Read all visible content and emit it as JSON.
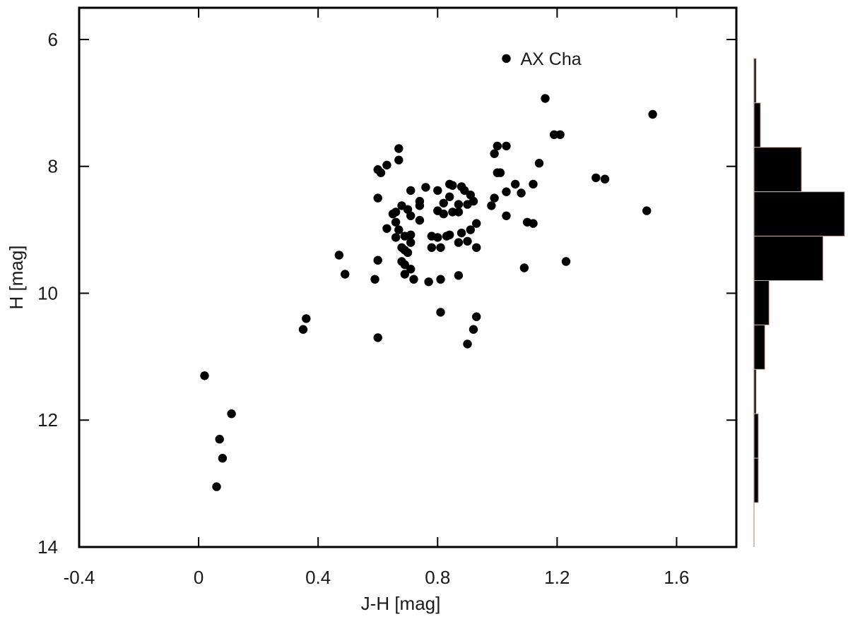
{
  "chart_data": {
    "type": "scatter",
    "xlabel": "J-H [mag]",
    "ylabel": "H [mag]",
    "xlim": [
      -0.4,
      1.8
    ],
    "ylim": [
      14,
      5.5
    ],
    "y_inverted": true,
    "x_ticks": [
      -0.4,
      0,
      0.4,
      0.8,
      1.2,
      1.6
    ],
    "x_tick_labels": [
      "-0.4",
      "0",
      "0.4",
      "0.8",
      "1.2",
      "1.6"
    ],
    "y_ticks": [
      6,
      8,
      10,
      12,
      14
    ],
    "y_tick_labels": [
      "6",
      "8",
      "10",
      "12",
      "14"
    ],
    "grid": false,
    "marker_color": "#000000",
    "annotation": {
      "text": "AX Cha",
      "x": 1.03,
      "y": 6.3
    },
    "points": [
      [
        1.03,
        6.3
      ],
      [
        1.16,
        6.93
      ],
      [
        1.52,
        7.18
      ],
      [
        1.19,
        7.5
      ],
      [
        1.21,
        7.5
      ],
      [
        1.0,
        7.68
      ],
      [
        1.03,
        7.68
      ],
      [
        0.99,
        7.8
      ],
      [
        0.67,
        7.72
      ],
      [
        0.67,
        7.9
      ],
      [
        0.63,
        7.98
      ],
      [
        0.6,
        8.05
      ],
      [
        0.61,
        8.1
      ],
      [
        1.0,
        8.1
      ],
      [
        1.01,
        8.1
      ],
      [
        1.14,
        7.95
      ],
      [
        1.33,
        8.18
      ],
      [
        1.36,
        8.2
      ],
      [
        1.06,
        8.28
      ],
      [
        1.12,
        8.28
      ],
      [
        1.08,
        8.42
      ],
      [
        1.03,
        8.4
      ],
      [
        0.99,
        8.5
      ],
      [
        0.6,
        8.5
      ],
      [
        0.71,
        8.38
      ],
      [
        0.76,
        8.33
      ],
      [
        0.8,
        8.38
      ],
      [
        0.84,
        8.28
      ],
      [
        0.85,
        8.3
      ],
      [
        0.88,
        8.32
      ],
      [
        0.89,
        8.38
      ],
      [
        0.91,
        8.45
      ],
      [
        0.92,
        8.55
      ],
      [
        0.9,
        8.6
      ],
      [
        0.87,
        8.6
      ],
      [
        0.84,
        8.48
      ],
      [
        0.82,
        8.58
      ],
      [
        0.8,
        8.7
      ],
      [
        0.74,
        8.55
      ],
      [
        0.74,
        8.62
      ],
      [
        0.7,
        8.68
      ],
      [
        0.68,
        8.62
      ],
      [
        0.65,
        8.75
      ],
      [
        0.66,
        8.72
      ],
      [
        0.71,
        8.78
      ],
      [
        0.74,
        8.85
      ],
      [
        0.82,
        8.75
      ],
      [
        0.85,
        8.72
      ],
      [
        0.87,
        8.72
      ],
      [
        0.98,
        8.62
      ],
      [
        1.03,
        8.78
      ],
      [
        1.5,
        8.7
      ],
      [
        1.1,
        8.88
      ],
      [
        1.12,
        8.9
      ],
      [
        0.93,
        8.9
      ],
      [
        0.91,
        9.0
      ],
      [
        0.88,
        9.05
      ],
      [
        0.66,
        8.88
      ],
      [
        0.63,
        8.98
      ],
      [
        0.67,
        9.0
      ],
      [
        0.71,
        9.08
      ],
      [
        0.69,
        9.1
      ],
      [
        0.66,
        9.12
      ],
      [
        0.78,
        9.1
      ],
      [
        0.8,
        9.12
      ],
      [
        0.83,
        9.1
      ],
      [
        0.84,
        9.08
      ],
      [
        0.71,
        9.2
      ],
      [
        0.68,
        9.28
      ],
      [
        0.69,
        9.32
      ],
      [
        0.7,
        9.36
      ],
      [
        0.78,
        9.28
      ],
      [
        0.81,
        9.28
      ],
      [
        0.87,
        9.2
      ],
      [
        0.9,
        9.18
      ],
      [
        0.93,
        9.28
      ],
      [
        0.47,
        9.4
      ],
      [
        0.6,
        9.48
      ],
      [
        0.68,
        9.5
      ],
      [
        0.69,
        9.55
      ],
      [
        0.71,
        9.62
      ],
      [
        1.09,
        9.6
      ],
      [
        1.23,
        9.5
      ],
      [
        0.49,
        9.7
      ],
      [
        0.69,
        9.7
      ],
      [
        0.72,
        9.78
      ],
      [
        0.59,
        9.78
      ],
      [
        0.77,
        9.82
      ],
      [
        0.81,
        9.78
      ],
      [
        0.87,
        9.72
      ],
      [
        0.81,
        10.3
      ],
      [
        0.36,
        10.4
      ],
      [
        0.35,
        10.57
      ],
      [
        0.93,
        10.37
      ],
      [
        0.92,
        10.57
      ],
      [
        0.6,
        10.7
      ],
      [
        0.9,
        10.8
      ],
      [
        0.02,
        11.3
      ],
      [
        0.11,
        11.9
      ],
      [
        0.07,
        12.3
      ],
      [
        0.08,
        12.6
      ],
      [
        0.06,
        13.05
      ]
    ]
  },
  "histogram": {
    "type": "bar",
    "orientation": "horizontal",
    "bin_edges": [
      6.3,
      7.0,
      7.7,
      8.4,
      9.1,
      9.8,
      10.5,
      11.2,
      11.9,
      12.6,
      13.3,
      14.0
    ],
    "counts": [
      1,
      3,
      22,
      42,
      32,
      7,
      5,
      1,
      2,
      2,
      0
    ],
    "fill_color": "#000000",
    "edge_color": "#c9a9a4"
  }
}
